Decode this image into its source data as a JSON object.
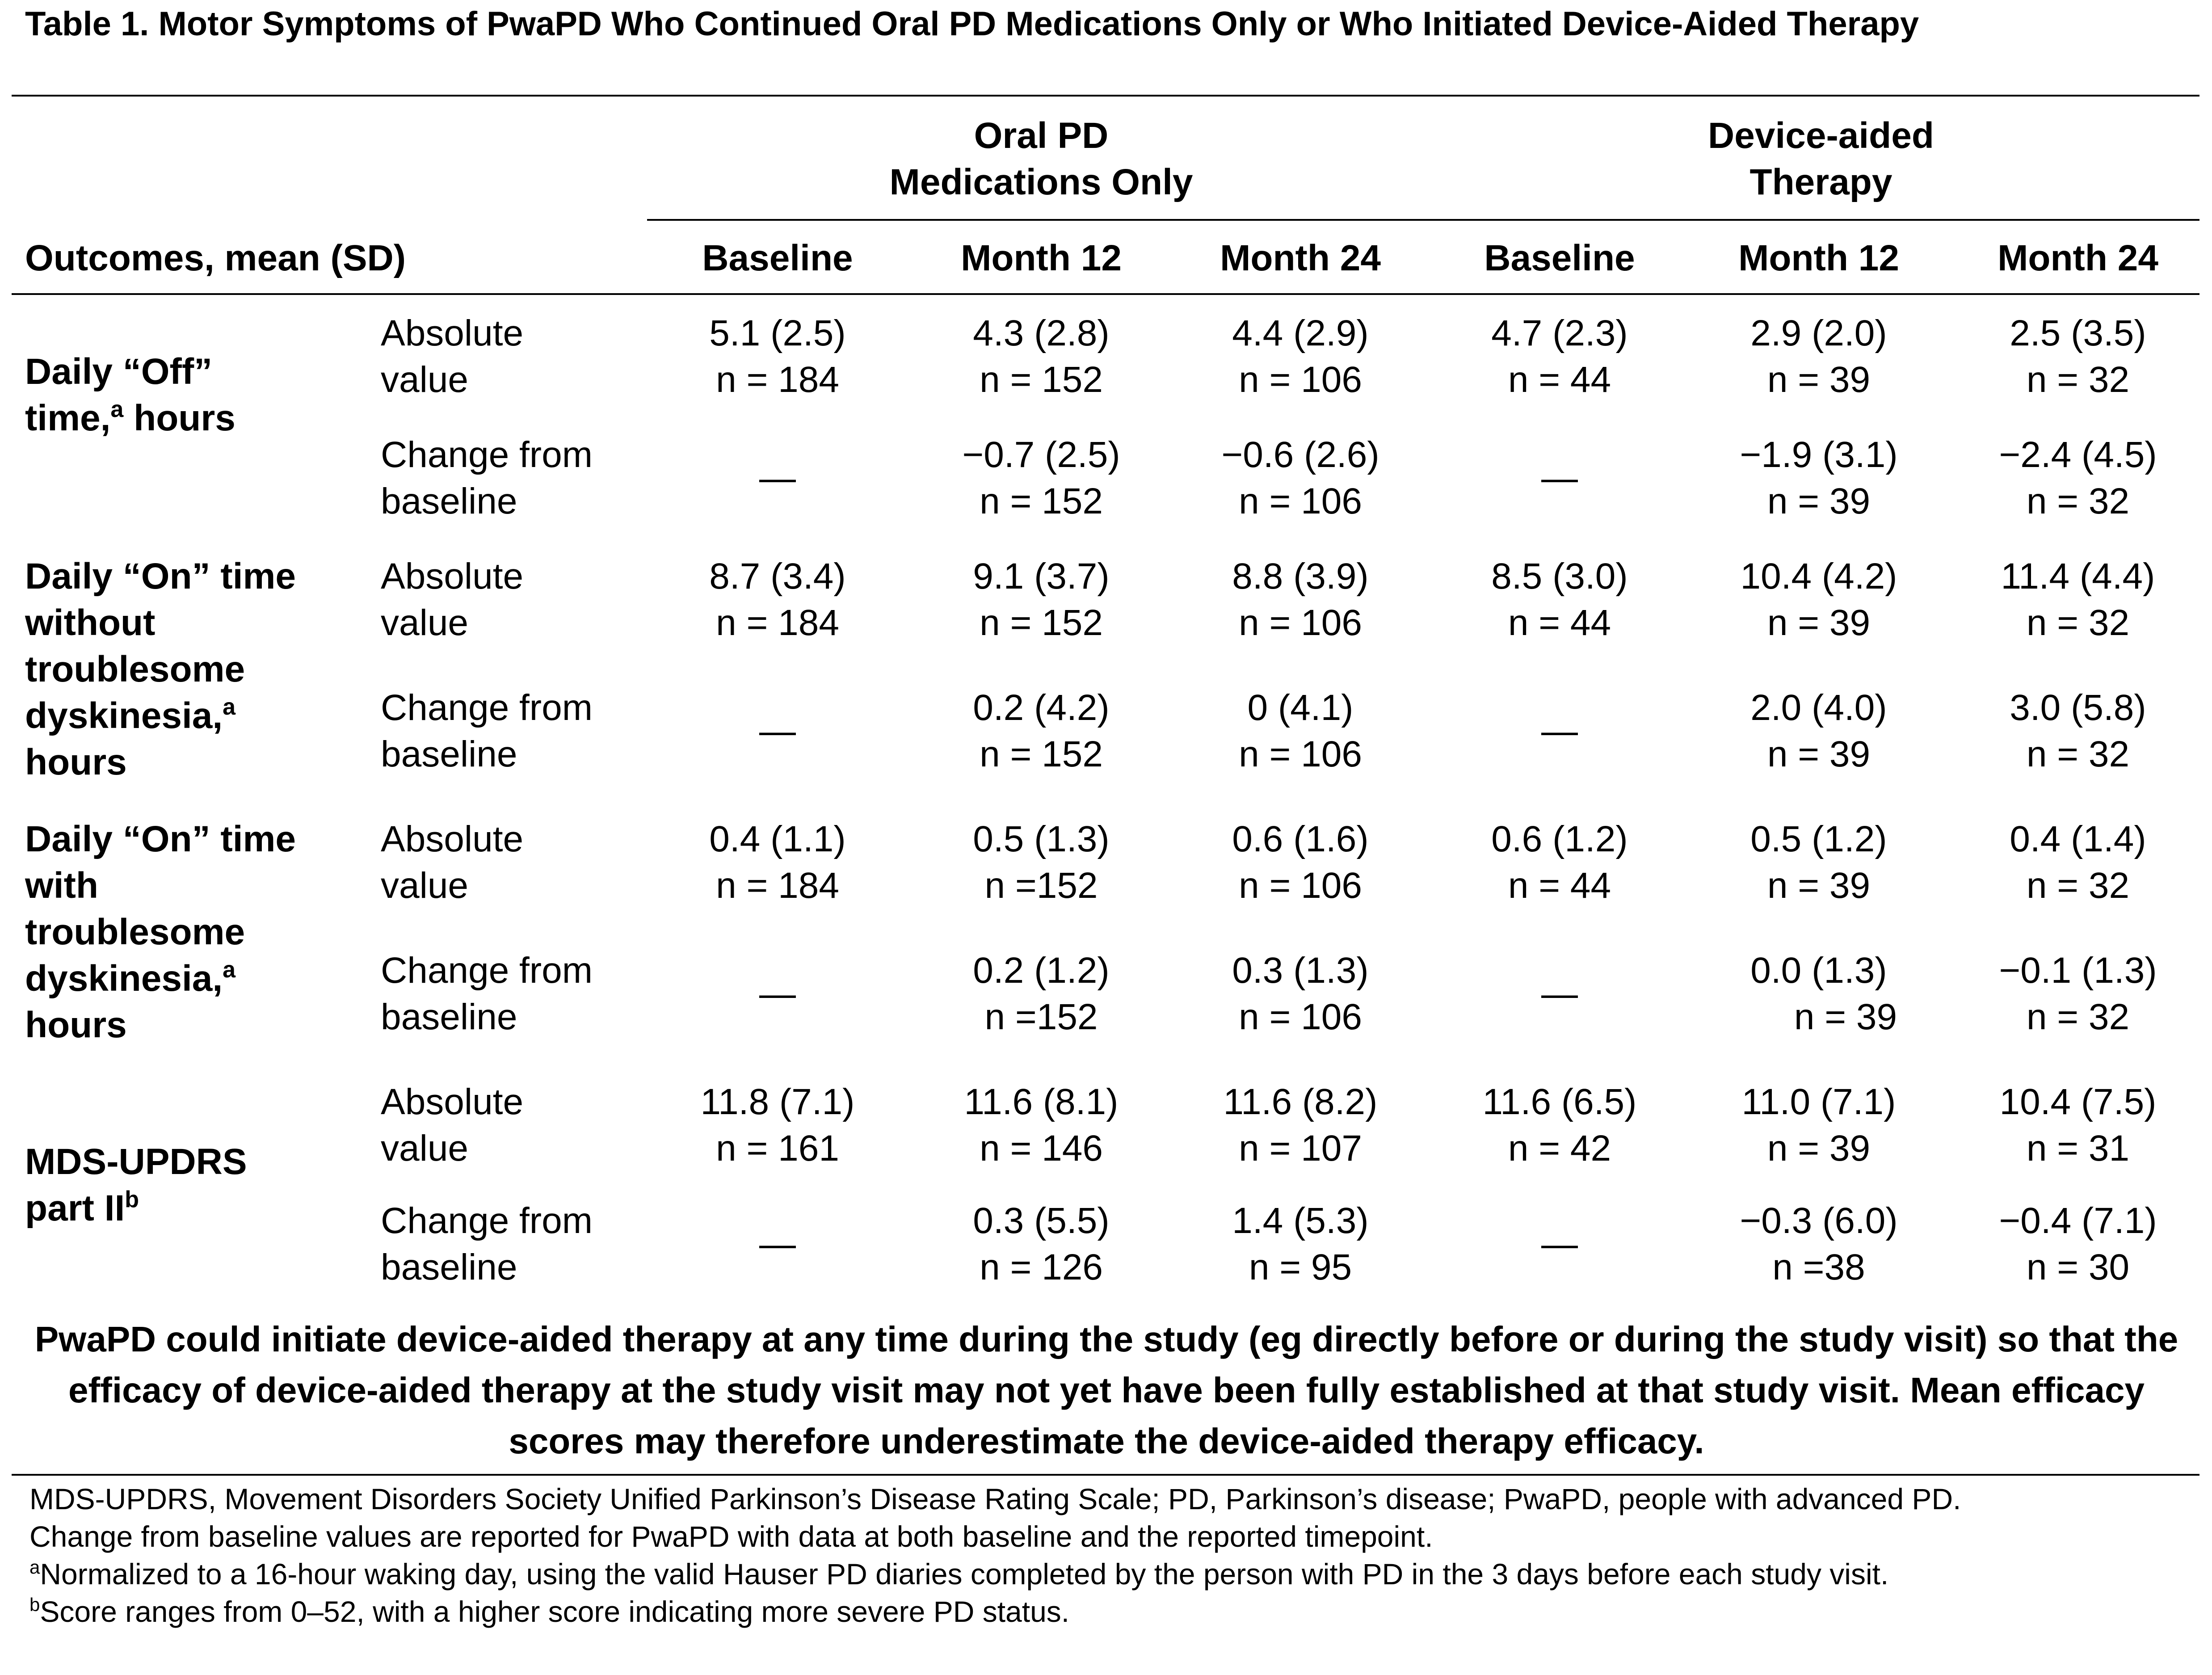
{
  "title": "Table 1. Motor Symptoms of PwaPD Who Continued Oral PD Medications Only or Who Initiated Device-Aided Therapy",
  "groups": [
    {
      "line1": "Oral PD",
      "line2": "Medications Only"
    },
    {
      "line1": "Device-aided",
      "line2": "Therapy"
    }
  ],
  "outcomes_header": "Outcomes, mean (SD)",
  "columns": [
    "Baseline",
    "Month 12",
    "Month 24",
    "Baseline",
    "Month 12",
    "Month 24"
  ],
  "sublabels": {
    "absolute_1": "Absolute",
    "absolute_2": "value",
    "change_1": "Change from",
    "change_2": "baseline"
  },
  "rows": [
    {
      "label_lines": [
        "Daily “Off”",
        "time,"
      ],
      "label_tail": "hours",
      "footnote": "a",
      "absolute": [
        {
          "v": "5.1 (2.5)",
          "n": "n = 184"
        },
        {
          "v": "4.3 (2.8)",
          "n": "n = 152"
        },
        {
          "v": "4.4 (2.9)",
          "n": "n = 106"
        },
        {
          "v": "4.7 (2.3)",
          "n": "n = 44"
        },
        {
          "v": "2.9 (2.0)",
          "n": "n = 39"
        },
        {
          "v": "2.5 (3.5)",
          "n": "n = 32"
        }
      ],
      "change": [
        {
          "v": "—",
          "n": ""
        },
        {
          "v": "−0.7 (2.5)",
          "n": "n = 152"
        },
        {
          "v": "−0.6 (2.6)",
          "n": "n = 106"
        },
        {
          "v": "—",
          "n": ""
        },
        {
          "v": "−1.9 (3.1)",
          "n": "n = 39"
        },
        {
          "v": "−2.4 (4.5)",
          "n": "n = 32"
        }
      ]
    },
    {
      "label_lines": [
        "Daily “On” time",
        "without",
        "troublesome",
        "dyskinesia,"
      ],
      "label_tail": "hours",
      "footnote": "a",
      "absolute": [
        {
          "v": "8.7 (3.4)",
          "n": "n = 184"
        },
        {
          "v": "9.1 (3.7)",
          "n": "n = 152"
        },
        {
          "v": "8.8 (3.9)",
          "n": "n = 106"
        },
        {
          "v": "8.5 (3.0)",
          "n": "n = 44"
        },
        {
          "v": "10.4 (4.2)",
          "n": "n = 39"
        },
        {
          "v": "11.4 (4.4)",
          "n": "n = 32"
        }
      ],
      "change": [
        {
          "v": "—",
          "n": ""
        },
        {
          "v": "0.2 (4.2)",
          "n": "n = 152"
        },
        {
          "v": "0 (4.1)",
          "n": "n = 106"
        },
        {
          "v": "—",
          "n": ""
        },
        {
          "v": "2.0 (4.0)",
          "n": "n = 39"
        },
        {
          "v": "3.0 (5.8)",
          "n": "n = 32"
        }
      ]
    },
    {
      "label_lines": [
        "Daily “On” time",
        "with",
        "troublesome",
        "dyskinesia,"
      ],
      "label_tail": "hours",
      "footnote": "a",
      "absolute": [
        {
          "v": "0.4 (1.1)",
          "n": "n = 184"
        },
        {
          "v": "0.5 (1.3)",
          "n": "n =152"
        },
        {
          "v": "0.6 (1.6)",
          "n": "n = 106"
        },
        {
          "v": "0.6 (1.2)",
          "n": "n = 44"
        },
        {
          "v": "0.5 (1.2)",
          "n": "n = 39"
        },
        {
          "v": "0.4 (1.4)",
          "n": "n = 32"
        }
      ],
      "change": [
        {
          "v": "—",
          "n": ""
        },
        {
          "v": "0.2 (1.2)",
          "n": "n =152"
        },
        {
          "v": "0.3 (1.3)",
          "n": "n = 106"
        },
        {
          "v": "—",
          "n": ""
        },
        {
          "v": "0.0 (1.3)",
          "n": "n = 39"
        },
        {
          "v": "−0.1 (1.3)",
          "n": "n = 32"
        }
      ]
    },
    {
      "label_lines": [
        "MDS-UPDRS",
        "part II"
      ],
      "label_tail": "",
      "footnote": "b",
      "absolute": [
        {
          "v": "11.8 (7.1)",
          "n": "n = 161"
        },
        {
          "v": "11.6 (8.1)",
          "n": "n = 146"
        },
        {
          "v": "11.6 (8.2)",
          "n": "n = 107"
        },
        {
          "v": "11.6 (6.5)",
          "n": "n = 42"
        },
        {
          "v": "11.0 (7.1)",
          "n": "n = 39"
        },
        {
          "v": "10.4 (7.5)",
          "n": "n = 31"
        }
      ],
      "change": [
        {
          "v": "—",
          "n": ""
        },
        {
          "v": "0.3 (5.5)",
          "n": "n = 126"
        },
        {
          "v": "1.4 (5.3)",
          "n": "n = 95"
        },
        {
          "v": "—",
          "n": ""
        },
        {
          "v": "−0.3 (6.0)",
          "n": "n =38"
        },
        {
          "v": "−0.4 (7.1)",
          "n": "n = 30"
        }
      ]
    }
  ],
  "note": "PwaPD could initiate device-aided therapy at any time during the study (eg directly before or during the study visit) so that the efficacy of device-aided therapy at the study visit may not yet have been fully established at that study visit. Mean efficacy scores may therefore underestimate the device-aided therapy efficacy.",
  "footnotes": {
    "abbrev": "MDS-UPDRS, Movement Disorders Society Unified Parkinson’s Disease Rating Scale; PD, Parkinson’s disease; PwaPD, people with advanced PD.",
    "change_note": "Change from baseline values are reported for PwaPD with data at both baseline and the reported timepoint.",
    "a_mark": "a",
    "a_text": "Normalized to a 16-hour waking day, using the valid Hauser PD diaries completed by the person with PD in the 3 days before each study visit.",
    "b_mark": "b",
    "b_text": "Score ranges from 0–52, with a higher score indicating more severe PD status."
  }
}
